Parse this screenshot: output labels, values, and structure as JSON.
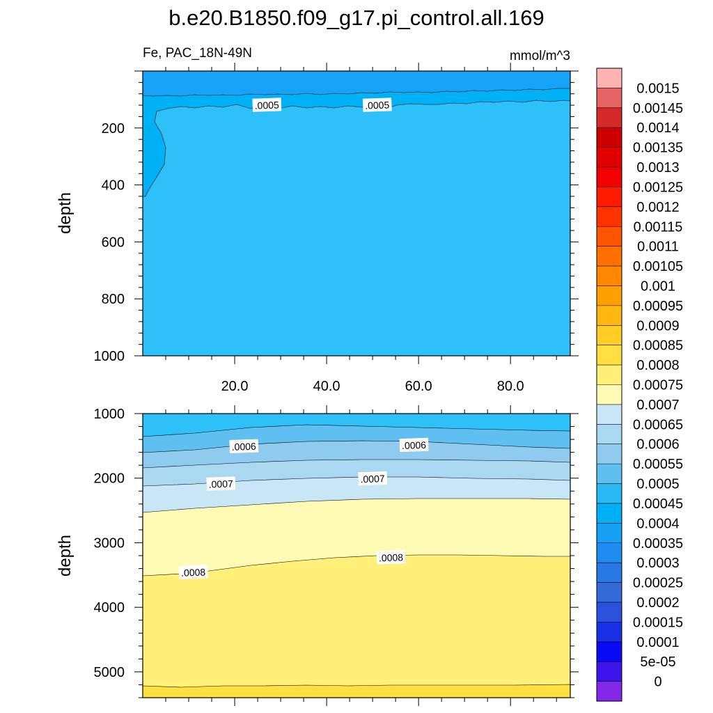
{
  "chart_data": {
    "type": "contour",
    "title": "b.e20.B1850.f09_g17.pi_control.all.169",
    "left_subtitle": "Fe, PAC_18N-49N",
    "right_subtitle": "mmol/m^3",
    "panels": [
      {
        "id": "upper",
        "ylabel": "depth",
        "xlim": [
          0,
          93
        ],
        "ylim": [
          1000,
          0
        ],
        "x_ticks": [
          "20.0",
          "40.0",
          "60.0",
          "80.0"
        ],
        "x_tick_values": [
          20,
          40,
          60,
          80
        ],
        "y_ticks": [
          "200",
          "400",
          "600",
          "800",
          "1000"
        ],
        "y_tick_values": [
          200,
          400,
          600,
          800,
          1000
        ],
        "contour_labels": [
          {
            "text": ".0005",
            "x": 27,
            "y": 120
          },
          {
            "text": ".0005",
            "x": 51,
            "y": 120
          }
        ]
      },
      {
        "id": "lower",
        "ylabel": "depth",
        "xlim": [
          0,
          93
        ],
        "ylim": [
          5400,
          1000
        ],
        "y_ticks": [
          "1000",
          "2000",
          "3000",
          "4000",
          "5000"
        ],
        "y_tick_values": [
          1000,
          2000,
          3000,
          4000,
          5000
        ],
        "contour_labels": [
          {
            "text": ".0006",
            "x": 22,
            "y": 1510
          },
          {
            "text": ".0006",
            "x": 59,
            "y": 1490
          },
          {
            "text": ".0007",
            "x": 17,
            "y": 2090
          },
          {
            "text": ".0007",
            "x": 50,
            "y": 2010
          },
          {
            "text": ".0008",
            "x": 11,
            "y": 3460
          },
          {
            "text": ".0008",
            "x": 54,
            "y": 3230
          }
        ]
      }
    ],
    "colorbar": {
      "labels": [
        "0.0015",
        "0.00145",
        "0.0014",
        "0.00135",
        "0.0013",
        "0.00125",
        "0.0012",
        "0.00115",
        "0.0011",
        "0.00105",
        "0.001",
        "0.00095",
        "0.0009",
        "0.00085",
        "0.0008",
        "0.00075",
        "0.0007",
        "0.00065",
        "0.0006",
        "0.00055",
        "0.0005",
        "0.00045",
        "0.0004",
        "0.00035",
        "0.0003",
        "0.00025",
        "0.0002",
        "0.00015",
        "0.0001",
        "5e-05",
        "0"
      ],
      "colors": [
        "#ffb3b3",
        "#e86464",
        "#d42a2a",
        "#cc0000",
        "#e00000",
        "#f20000",
        "#ff1a00",
        "#ff3300",
        "#ff5500",
        "#ff7000",
        "#ff8800",
        "#ffa000",
        "#ffb812",
        "#ffcd26",
        "#ffe040",
        "#fff07a",
        "#fffab4",
        "#c8e6f5",
        "#aad8f0",
        "#8ecbee",
        "#5ebff0",
        "#2ab8f0",
        "#00b0f5",
        "#16a0f5",
        "#1e8cf0",
        "#2878e6",
        "#326ad8",
        "#2a50dc",
        "#1a30e6",
        "#0a0af5",
        "#3c14eb",
        "#8228e6"
      ]
    }
  }
}
